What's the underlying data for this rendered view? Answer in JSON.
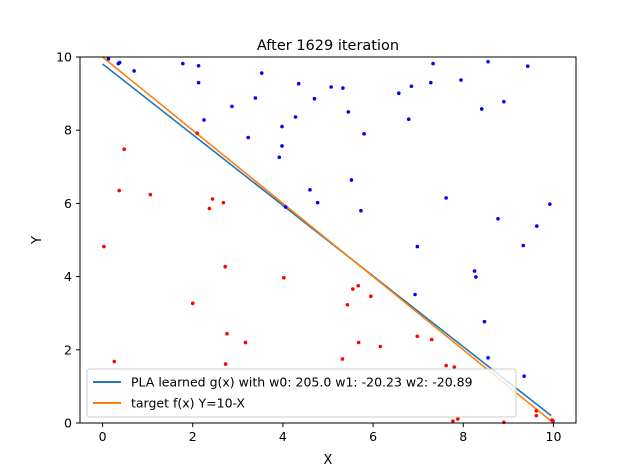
{
  "chart_data": {
    "type": "scatter",
    "title": "After 1629 iteration",
    "xlabel": "X",
    "ylabel": "Y",
    "xlim": [
      -0.5,
      10.5
    ],
    "ylim": [
      0,
      10
    ],
    "xticks": [
      "0",
      "2",
      "4",
      "6",
      "8",
      "10"
    ],
    "yticks": [
      "0",
      "2",
      "4",
      "6",
      "8",
      "10"
    ],
    "grid": false,
    "legend_position": "lower-left",
    "series": [
      {
        "name": "PLA learned g(x) with w0: 205.0 w1: -20.23 w2: -20.89",
        "kind": "line",
        "color": "#1f77b4",
        "x": [
          0,
          9.95
        ],
        "y": [
          9.81,
          0.2
        ]
      },
      {
        "name": "target f(x) Y=10-X",
        "kind": "line",
        "color": "#ff7f0e",
        "x": [
          0,
          10
        ],
        "y": [
          10,
          0
        ]
      },
      {
        "kind": "scatter",
        "color": "#0000ff",
        "points": [
          [
            0.13,
            9.95
          ],
          [
            0.35,
            9.82
          ],
          [
            0.38,
            9.85
          ],
          [
            0.7,
            9.62
          ],
          [
            1.78,
            9.82
          ],
          [
            2.13,
            9.76
          ],
          [
            2.13,
            9.3
          ],
          [
            2.25,
            8.28
          ],
          [
            2.87,
            8.65
          ],
          [
            3.23,
            7.8
          ],
          [
            3.39,
            8.88
          ],
          [
            3.53,
            9.56
          ],
          [
            3.92,
            7.26
          ],
          [
            3.98,
            7.57
          ],
          [
            3.98,
            8.1
          ],
          [
            4.06,
            5.9
          ],
          [
            4.28,
            8.36
          ],
          [
            4.35,
            9.27
          ],
          [
            4.6,
            6.37
          ],
          [
            4.7,
            8.86
          ],
          [
            4.77,
            6.02
          ],
          [
            5.07,
            9.18
          ],
          [
            5.33,
            9.15
          ],
          [
            5.45,
            8.5
          ],
          [
            5.52,
            6.64
          ],
          [
            5.73,
            5.8
          ],
          [
            5.8,
            7.9
          ],
          [
            6.57,
            9.01
          ],
          [
            6.79,
            8.3
          ],
          [
            6.85,
            9.2
          ],
          [
            6.93,
            3.51
          ],
          [
            6.98,
            4.82
          ],
          [
            7.28,
            9.3
          ],
          [
            7.33,
            9.82
          ],
          [
            7.62,
            6.15
          ],
          [
            7.95,
            9.37
          ],
          [
            8.25,
            4.15
          ],
          [
            8.28,
            3.99
          ],
          [
            8.41,
            8.58
          ],
          [
            8.47,
            2.77
          ],
          [
            8.55,
            1.78
          ],
          [
            8.55,
            9.87
          ],
          [
            8.77,
            5.58
          ],
          [
            8.9,
            8.78
          ],
          [
            9.33,
            4.85
          ],
          [
            9.35,
            1.28
          ],
          [
            9.43,
            9.75
          ],
          [
            9.63,
            5.38
          ],
          [
            9.92,
            5.98
          ]
        ]
      },
      {
        "kind": "scatter",
        "color": "#ff0000",
        "points": [
          [
            0.03,
            4.82
          ],
          [
            0.26,
            1.68
          ],
          [
            0.37,
            6.35
          ],
          [
            0.48,
            7.48
          ],
          [
            1.06,
            6.24
          ],
          [
            2.0,
            3.27
          ],
          [
            2.1,
            7.92
          ],
          [
            2.37,
            5.86
          ],
          [
            2.44,
            6.12
          ],
          [
            2.68,
            6.02
          ],
          [
            2.72,
            4.27
          ],
          [
            2.73,
            1.61
          ],
          [
            2.76,
            2.44
          ],
          [
            3.17,
            2.2
          ],
          [
            4.02,
            3.97
          ],
          [
            5.32,
            1.75
          ],
          [
            5.43,
            3.23
          ],
          [
            5.55,
            3.66
          ],
          [
            5.67,
            3.75
          ],
          [
            5.68,
            2.2
          ],
          [
            5.95,
            3.46
          ],
          [
            6.16,
            2.09
          ],
          [
            6.98,
            2.37
          ],
          [
            7.3,
            2.28
          ],
          [
            7.62,
            1.57
          ],
          [
            7.77,
            0.05
          ],
          [
            7.8,
            1.53
          ],
          [
            7.88,
            0.11
          ],
          [
            8.9,
            0.02
          ],
          [
            9.62,
            0.2
          ],
          [
            9.62,
            0.33
          ],
          [
            9.97,
            0.08
          ],
          [
            9.99,
            0.05
          ]
        ]
      }
    ]
  }
}
